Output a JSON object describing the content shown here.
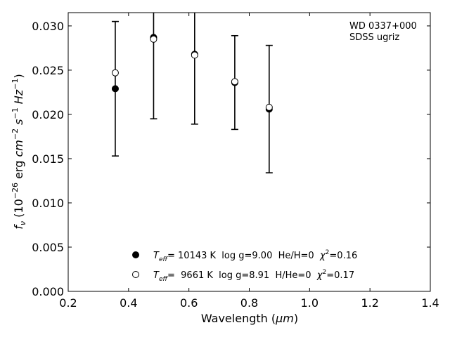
{
  "chart_data": {
    "type": "scatter",
    "xlabel_main": "Wavelength (",
    "xlabel_unit": "μm",
    "xlabel_close": ")",
    "ylabel_f": "f",
    "ylabel_sub": "ν",
    "ylabel_open": " (10",
    "ylabel_exp": "−26",
    "ylabel_erg": " erg ",
    "ylabel_cm": "cm",
    "ylabel_cmexp": "−2",
    "ylabel_s": " s",
    "ylabel_sexp": "−1",
    "ylabel_hz": " Hz",
    "ylabel_hzexp": "−1",
    "ylabel_close": ")",
    "xlim": [
      0.2,
      1.4
    ],
    "ylim": [
      0.0,
      0.0315
    ],
    "xticks": [
      "0.2",
      "0.4",
      "0.6",
      "0.8",
      "1.0",
      "1.2",
      "1.4"
    ],
    "yticks": [
      "0.000",
      "0.005",
      "0.010",
      "0.015",
      "0.020",
      "0.025",
      "0.030"
    ],
    "annotation_lines": [
      "WD 0337+000",
      "SDSS ugriz"
    ],
    "observed": {
      "x": [
        0.356,
        0.483,
        0.619,
        0.752,
        0.866
      ],
      "y": [
        0.0229,
        0.0287,
        0.0268,
        0.0236,
        0.0206
      ],
      "err": [
        0.0076,
        0.0092,
        0.0079,
        0.0053,
        0.0072
      ]
    },
    "series": [
      {
        "name": "Teff= 10143 K log g=9.00 He/H=0 χ2=0.16",
        "marker": "filled",
        "x": [
          0.356,
          0.483,
          0.619,
          0.752,
          0.866
        ],
        "y": [
          0.0229,
          0.0287,
          0.0268,
          0.0236,
          0.0206
        ]
      },
      {
        "name": "Teff= 9661 K log g=8.91 H/He=0 χ2=0.17",
        "marker": "open",
        "x": [
          0.356,
          0.483,
          0.619,
          0.752,
          0.866
        ],
        "y": [
          0.0247,
          0.0285,
          0.0267,
          0.0237,
          0.0208
        ]
      }
    ],
    "legend": [
      {
        "T": "T",
        "Tsub": "eff",
        "rest": "= 10143 K  log g=9.00  He/H=0  ",
        "chi": "χ",
        "chiexp": "2",
        "chival": "=0.16"
      },
      {
        "T": "T",
        "Tsub": "eff",
        "rest": "=  9661 K  log g=8.91  H/He=0  ",
        "chi": "χ",
        "chiexp": "2",
        "chival": "=0.17"
      }
    ]
  }
}
